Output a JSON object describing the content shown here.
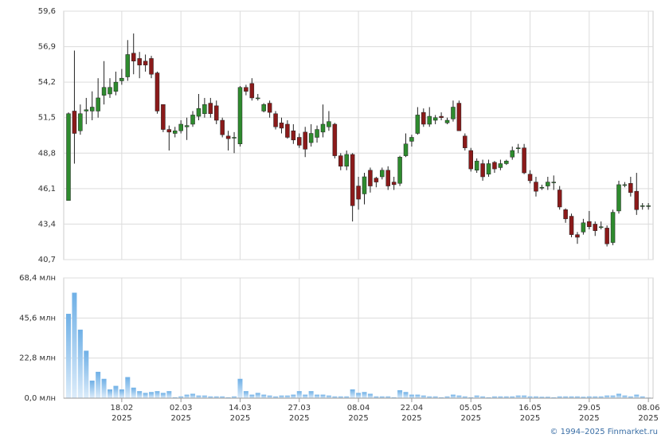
{
  "chart_data": [
    {
      "type": "candlestick",
      "open": [
        45.2,
        52.0,
        50.5,
        52.0,
        52.0,
        52.0,
        53.2,
        53.3,
        53.5,
        54.3,
        54.6,
        56.4,
        56.0,
        55.8,
        56.0,
        54.9,
        52.5,
        50.6,
        50.3,
        50.5,
        50.8,
        51.0,
        51.6,
        51.8,
        52.6,
        52.4,
        51.3,
        50.1,
        50.0,
        49.5,
        53.8,
        54.1,
        53.0,
        52.0,
        52.6,
        51.8,
        51.1,
        51.0,
        50.5,
        50.0,
        50.4,
        49.6,
        50.0,
        50.4,
        50.8,
        51.0,
        48.6,
        47.8,
        48.7,
        46.3,
        45.7,
        47.5,
        46.9,
        47.0,
        47.5,
        46.6,
        46.5,
        48.6,
        49.7,
        50.3,
        51.9,
        51.0,
        51.3,
        51.6,
        51.1,
        51.4,
        52.6,
        50.1,
        49.0,
        47.5,
        48.0,
        47.2,
        48.1,
        47.7,
        48.0,
        48.5,
        49.2,
        49.2,
        47.2,
        46.6,
        46.2,
        46.3,
        46.6,
        46.0,
        44.5,
        44.0,
        42.6,
        42.8,
        43.6,
        43.4,
        43.2,
        43.1,
        42.0,
        44.4,
        46.4,
        46.5,
        45.9,
        44.8,
        44.8
      ],
      "high": [
        51.9,
        56.6,
        52.5,
        53.0,
        53.5,
        54.5,
        55.8,
        54.5,
        55.0,
        55.2,
        57.4,
        57.9,
        56.5,
        56.3,
        56.2,
        55.0,
        52.5,
        50.9,
        50.8,
        51.3,
        51.5,
        52.0,
        53.3,
        53.0,
        53.0,
        52.8,
        51.5,
        50.5,
        50.4,
        53.9,
        54.0,
        54.5,
        53.3,
        52.6,
        52.8,
        52.0,
        51.5,
        51.3,
        51.0,
        50.3,
        50.8,
        51.0,
        50.9,
        52.5,
        52.0,
        51.1,
        48.8,
        49.0,
        48.8,
        47.0,
        47.3,
        47.7,
        47.0,
        47.7,
        47.8,
        47.0,
        48.6,
        50.3,
        50.2,
        52.3,
        52.2,
        52.3,
        51.7,
        51.9,
        51.5,
        52.8,
        52.8,
        50.3,
        49.2,
        48.4,
        48.3,
        48.3,
        48.2,
        48.3,
        48.3,
        49.3,
        49.5,
        49.5,
        47.5,
        47.0,
        46.4,
        47.0,
        47.1,
        46.3,
        44.6,
        44.2,
        42.8,
        43.8,
        44.4,
        43.6,
        43.6,
        43.3,
        44.5,
        46.7,
        46.6,
        47.0,
        47.3,
        45.0,
        45.0
      ],
      "low": [
        45.2,
        48.0,
        50.2,
        51.0,
        51.3,
        51.5,
        52.5,
        53.0,
        53.2,
        54.0,
        54.3,
        54.8,
        54.5,
        55.0,
        54.5,
        51.8,
        50.4,
        49.0,
        50.0,
        50.3,
        49.8,
        50.8,
        51.3,
        51.5,
        51.5,
        51.0,
        50.0,
        49.0,
        48.8,
        49.3,
        53.2,
        52.8,
        52.8,
        51.9,
        51.5,
        50.6,
        50.3,
        49.9,
        49.5,
        49.2,
        48.5,
        49.3,
        49.6,
        50.0,
        50.5,
        48.4,
        47.5,
        47.5,
        43.6,
        44.5,
        44.9,
        45.8,
        46.2,
        46.8,
        46.0,
        46.0,
        46.3,
        48.5,
        49.3,
        50.2,
        50.8,
        50.8,
        51.0,
        51.3,
        51.0,
        51.2,
        50.5,
        49.0,
        47.4,
        47.3,
        46.7,
        47.0,
        47.3,
        47.5,
        47.9,
        48.3,
        48.8,
        47.2,
        46.5,
        45.5,
        46.0,
        46.0,
        46.0,
        44.5,
        43.5,
        42.4,
        41.9,
        42.6,
        43.0,
        42.5,
        43.0,
        41.7,
        41.8,
        44.2,
        46.2,
        45.5,
        44.1,
        44.5,
        44.5
      ],
      "close": [
        51.8,
        50.3,
        51.8,
        52.1,
        52.3,
        53.0,
        53.8,
        53.8,
        54.2,
        54.5,
        56.3,
        55.8,
        55.5,
        55.5,
        54.8,
        52.0,
        50.6,
        50.4,
        50.5,
        51.0,
        50.9,
        51.7,
        52.2,
        52.5,
        51.8,
        51.3,
        50.2,
        49.9,
        50.0,
        53.8,
        53.5,
        53.0,
        53.0,
        52.5,
        51.9,
        50.8,
        50.7,
        50.0,
        49.8,
        49.4,
        49.1,
        50.3,
        50.6,
        51.0,
        51.2,
        48.6,
        47.8,
        48.7,
        44.8,
        45.3,
        47.0,
        46.3,
        46.6,
        47.5,
        46.3,
        46.4,
        48.5,
        49.5,
        50.0,
        51.7,
        51.0,
        51.6,
        51.5,
        51.5,
        51.3,
        52.3,
        50.5,
        49.2,
        47.6,
        48.2,
        47.0,
        48.0,
        47.6,
        48.0,
        48.2,
        49.0,
        49.2,
        47.3,
        46.7,
        45.9,
        46.2,
        46.6,
        46.6,
        44.7,
        43.8,
        42.6,
        42.4,
        43.5,
        43.2,
        42.9,
        43.2,
        41.9,
        44.3,
        46.4,
        46.4,
        45.8,
        44.5,
        44.8,
        44.8
      ],
      "up_color": "#2e8b2e",
      "down_color": "#8b1a1a",
      "ylim": [
        40.7,
        59.6
      ],
      "yticks": [
        {
          "value": 40.7,
          "label": "40,7"
        },
        {
          "value": 43.4,
          "label": "43,4"
        },
        {
          "value": 46.1,
          "label": "46,1"
        },
        {
          "value": 48.8,
          "label": "48,8"
        },
        {
          "value": 51.5,
          "label": "51,5"
        },
        {
          "value": 54.2,
          "label": "54,2"
        },
        {
          "value": 56.9,
          "label": "56,9"
        },
        {
          "value": 59.6,
          "label": "59,6"
        }
      ],
      "grid": true
    },
    {
      "type": "bar",
      "values": [
        48,
        60,
        39,
        27,
        10,
        15,
        11,
        5,
        7,
        5,
        12,
        6,
        4,
        3,
        3.5,
        4,
        3,
        4,
        0.5,
        1,
        2,
        2.5,
        1.5,
        1.5,
        1,
        1,
        1,
        0.5,
        1,
        11,
        4,
        2,
        3,
        2,
        1.5,
        1,
        1.5,
        1.5,
        2,
        4,
        2,
        4,
        2,
        2,
        1.5,
        1,
        1,
        1,
        5,
        3,
        3.5,
        2.5,
        1,
        1,
        1,
        0.5,
        4.5,
        3.5,
        2,
        2,
        1.5,
        1,
        1,
        0.5,
        1,
        2,
        1.5,
        1,
        0.5,
        1.5,
        1,
        0.5,
        1,
        1,
        1,
        1,
        1.5,
        1.5,
        1,
        1,
        0.8,
        0.8,
        0.5,
        1,
        1,
        1,
        1,
        0.8,
        1,
        1,
        1,
        1.5,
        1.5,
        2.5,
        1.5,
        1,
        2,
        1,
        0.3
      ],
      "color": "#7ab8e8",
      "ylim": [
        0,
        68.4
      ],
      "yticks": [
        {
          "value": 0,
          "label": "0,0 млн"
        },
        {
          "value": 22.8,
          "label": "22,8 млн"
        },
        {
          "value": 45.6,
          "label": "45,6 млн"
        },
        {
          "value": 68.4,
          "label": "68,4 млн"
        }
      ],
      "xticks": [
        {
          "value": 9,
          "label": "18.02",
          "year": "2025"
        },
        {
          "value": 19,
          "label": "02.03",
          "year": "2025"
        },
        {
          "value": 29,
          "label": "14.03",
          "year": "2025"
        },
        {
          "value": 39,
          "label": "27.03",
          "year": "2025"
        },
        {
          "value": 49,
          "label": "08.04",
          "year": "2025"
        },
        {
          "value": 58,
          "label": "22.04",
          "year": "2025"
        },
        {
          "value": 68,
          "label": "05.05",
          "year": "2025"
        },
        {
          "value": 78,
          "label": "16.05",
          "year": "2025"
        },
        {
          "value": 88,
          "label": "29.05",
          "year": "2025"
        },
        {
          "value": 98,
          "label": "08.06",
          "year": "2025"
        }
      ],
      "grid": true
    }
  ],
  "footer": "© 1994–2025 Finmarket.ru"
}
